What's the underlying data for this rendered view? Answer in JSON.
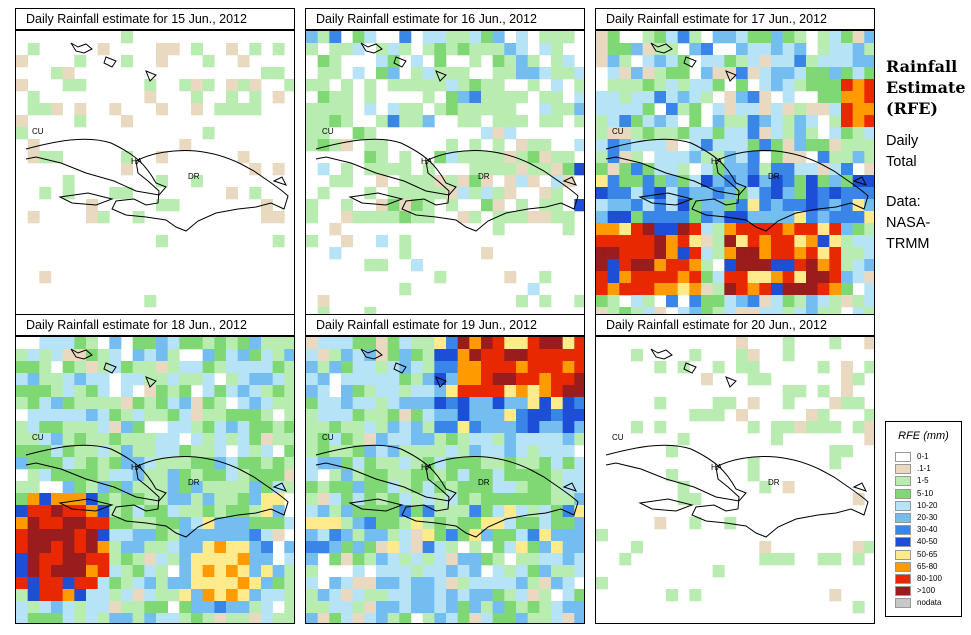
{
  "panels": [
    {
      "title_prefix": "Daily Rainfall estimate for ",
      "date": "15 Jun., 2012",
      "profile": "d15",
      "countries": [
        "CU",
        "HA",
        "DR"
      ]
    },
    {
      "title_prefix": "Daily Rainfall estimate for ",
      "date": "16 Jun., 2012",
      "profile": "d16",
      "countries": [
        "CU",
        "HA",
        "DR"
      ]
    },
    {
      "title_prefix": "Daily Rainfall estimate for ",
      "date": "17 Jun., 2012",
      "profile": "d17",
      "countries": [
        "CU",
        "HA",
        "DR"
      ]
    },
    {
      "title_prefix": "Daily Rainfall estimate for ",
      "date": "18 Jun., 2012",
      "profile": "d18",
      "countries": [
        "CU",
        "HA",
        "DR"
      ]
    },
    {
      "title_prefix": "Daily Rainfall estimate for ",
      "date": "19 Jun., 2012",
      "profile": "d19",
      "countries": [
        "CU",
        "HA",
        "DR"
      ]
    },
    {
      "title_prefix": "Daily Rainfall estimate for ",
      "date": "20 Jun., 2012",
      "profile": "d20",
      "countries": [
        "CU",
        "HA",
        "DR"
      ]
    }
  ],
  "sidebar": {
    "title_lines": [
      "Rainfall",
      "Estimate",
      "(RFE)"
    ],
    "period_lines": [
      "Daily",
      "Total"
    ],
    "source_lines": [
      "Data:",
      "NASA-",
      "TRMM"
    ]
  },
  "legend": {
    "title": "RFE (mm)",
    "classes": [
      {
        "label": "0-1",
        "color": "#ffffff"
      },
      {
        "label": ".1-1",
        "color": "#e8d9c0"
      },
      {
        "label": "1-5",
        "color": "#b9ecb0"
      },
      {
        "label": "5-10",
        "color": "#7fd873"
      },
      {
        "label": "10-20",
        "color": "#b6e3f5"
      },
      {
        "label": "20-30",
        "color": "#74bdf0"
      },
      {
        "label": "30-40",
        "color": "#3a86e8"
      },
      {
        "label": "40-50",
        "color": "#1c4fd6"
      },
      {
        "label": "50-65",
        "color": "#ffea8c"
      },
      {
        "label": "65-80",
        "color": "#ff9a00"
      },
      {
        "label": "80-100",
        "color": "#e82800"
      },
      {
        "label": ">100",
        "color": "#9b1c1c"
      },
      {
        "label": "nodata",
        "color": "#c8c8c8"
      }
    ]
  }
}
